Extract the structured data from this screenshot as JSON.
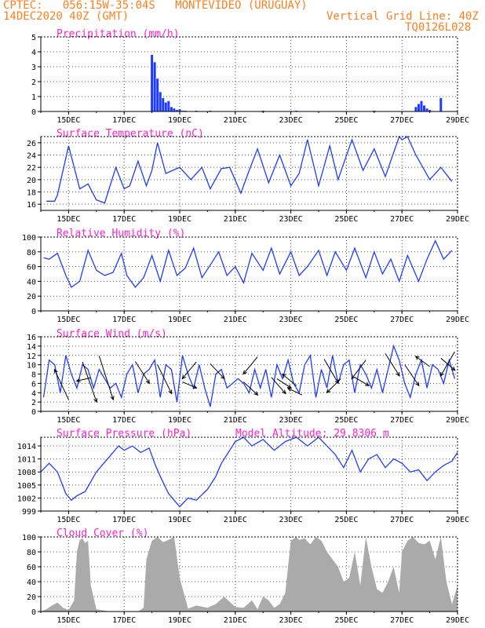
{
  "header": {
    "line1": "CPTEC:   056:15W-35:04S   MONTEVIDEO (URUGUAY)",
    "line2": "14DEC2020 40Z (GMT)",
    "grid_note": "Vertical Grid Line: 40Z",
    "code": "TQ0126L028",
    "altitude_note": "Model Altitude: 29.8306 m"
  },
  "colors": {
    "header": "#ff7f1e",
    "title": "#ff22cc",
    "line": "#1e3cff",
    "bar": "#1e3cff",
    "cloud": "#aaaaaa",
    "arrow": "#000000"
  },
  "x_ticks": [
    "15DEC",
    "17DEC",
    "19DEC",
    "21DEC",
    "23DEC",
    "25DEC",
    "27DEC",
    "29DEC"
  ],
  "chart_data": [
    {
      "type": "bar",
      "title": "Precipitation (mm/h)",
      "ylim": [
        0,
        5
      ],
      "yticks": [
        "0",
        "1",
        "2",
        "3",
        "4",
        "5"
      ],
      "x_units": "days since 14DEC 00Z",
      "x": [
        4.0,
        4.1,
        4.2,
        4.3,
        4.4,
        4.5,
        4.6,
        4.7,
        4.8,
        4.9,
        5.0,
        5.1,
        5.2,
        5.6,
        6.1,
        8.0,
        9.2,
        12.0,
        13.5,
        13.6,
        13.7,
        13.8,
        13.9,
        14.0,
        14.4
      ],
      "values": [
        3.8,
        3.3,
        2.2,
        1.3,
        0.9,
        0.6,
        0.7,
        0.3,
        0.2,
        0.1,
        0.15,
        0.05,
        0.05,
        0.05,
        0.05,
        0.05,
        0.05,
        0.05,
        0.3,
        0.5,
        0.7,
        0.4,
        0.2,
        0.1,
        0.9
      ]
    },
    {
      "type": "line",
      "title": "Surface Temperature (nC)",
      "ylim": [
        15,
        27
      ],
      "yticks": [
        "16",
        "18",
        "20",
        "22",
        "24",
        "26"
      ],
      "x_units": "days since 14DEC 00Z",
      "x": [
        0.2,
        0.5,
        0.6,
        1.0,
        1.4,
        1.7,
        2.0,
        2.3,
        2.7,
        3.0,
        3.2,
        3.5,
        3.8,
        4.0,
        4.2,
        4.5,
        5.0,
        5.4,
        5.8,
        6.1,
        6.5,
        6.8,
        7.2,
        7.5,
        7.8,
        8.2,
        8.6,
        9.0,
        9.3,
        9.6,
        10.0,
        10.4,
        10.7,
        11.2,
        11.6,
        12.0,
        12.4,
        12.9,
        13.0,
        13.2,
        13.5,
        14.0,
        14.4,
        14.8
      ],
      "values": [
        16.5,
        16.5,
        17.5,
        25.5,
        18.5,
        19.3,
        16.7,
        16.2,
        22.0,
        18.5,
        19.0,
        23.0,
        19.0,
        21.5,
        26.0,
        21.0,
        22.0,
        20.0,
        22.0,
        18.5,
        21.8,
        22.0,
        17.8,
        21.5,
        25.0,
        19.5,
        24.0,
        19.0,
        21.0,
        26.5,
        19.0,
        25.5,
        20.0,
        26.5,
        21.5,
        25.0,
        20.5,
        27.0,
        26.5,
        27.0,
        24.0,
        20.0,
        22.0,
        19.7
      ]
    },
    {
      "type": "line",
      "title": "Relative Humidity (%)",
      "ylim": [
        0,
        100
      ],
      "yticks": [
        "0",
        "20",
        "40",
        "60",
        "80",
        "100"
      ],
      "x_units": "days since 14DEC 00Z",
      "x": [
        0.1,
        0.3,
        0.6,
        0.9,
        1.1,
        1.4,
        1.7,
        2.0,
        2.3,
        2.6,
        2.9,
        3.1,
        3.4,
        3.7,
        4.0,
        4.3,
        4.6,
        4.9,
        5.2,
        5.5,
        5.8,
        6.1,
        6.4,
        6.7,
        7.0,
        7.3,
        7.6,
        8.0,
        8.3,
        8.6,
        9.0,
        9.3,
        9.6,
        10.0,
        10.3,
        10.6,
        11.0,
        11.3,
        11.7,
        12.0,
        12.3,
        12.6,
        12.9,
        13.2,
        13.6,
        13.9,
        14.2,
        14.5,
        14.8
      ],
      "values": [
        72,
        70,
        78,
        48,
        32,
        40,
        82,
        55,
        48,
        52,
        78,
        48,
        32,
        45,
        75,
        40,
        82,
        48,
        58,
        85,
        45,
        62,
        80,
        48,
        60,
        38,
        78,
        55,
        85,
        50,
        80,
        48,
        60,
        82,
        48,
        80,
        55,
        85,
        45,
        80,
        50,
        70,
        40,
        75,
        40,
        70,
        95,
        70,
        82
      ]
    },
    {
      "type": "line",
      "title": "Surface Wind (m/s)",
      "ylim": [
        0,
        16
      ],
      "yticks": [
        "0",
        "2",
        "4",
        "6",
        "8",
        "10",
        "12",
        "14",
        "16"
      ],
      "x_units": "days since 14DEC 00Z",
      "x": [
        0.1,
        0.3,
        0.5,
        0.7,
        0.9,
        1.1,
        1.3,
        1.5,
        1.7,
        1.9,
        2.1,
        2.3,
        2.5,
        2.7,
        2.9,
        3.1,
        3.3,
        3.5,
        3.7,
        3.9,
        4.1,
        4.3,
        4.5,
        4.7,
        4.9,
        5.1,
        5.3,
        5.5,
        5.7,
        5.9,
        6.1,
        6.3,
        6.5,
        6.7,
        6.9,
        7.1,
        7.3,
        7.5,
        7.7,
        7.9,
        8.1,
        8.3,
        8.5,
        8.7,
        8.9,
        9.1,
        9.3,
        9.5,
        9.7,
        9.9,
        10.1,
        10.3,
        10.5,
        10.7,
        10.9,
        11.1,
        11.3,
        11.5,
        11.7,
        11.9,
        12.1,
        12.3,
        12.5,
        12.7,
        12.9,
        13.1,
        13.3,
        13.5,
        13.7,
        13.9,
        14.1,
        14.3,
        14.5,
        14.7,
        14.9
      ],
      "values": [
        3,
        11,
        10,
        4,
        12,
        8,
        5,
        10,
        9,
        5,
        9,
        7,
        5,
        6,
        3,
        8,
        10,
        4,
        8,
        9,
        11,
        3,
        10,
        9,
        2,
        12,
        8,
        5,
        10,
        5,
        1,
        8,
        9,
        5,
        6,
        7,
        6,
        4,
        9,
        5,
        9,
        3,
        10,
        7,
        11,
        6,
        4,
        10,
        12,
        3,
        9,
        5,
        12,
        6,
        10,
        11,
        4,
        10,
        8,
        5,
        9,
        4,
        9,
        14,
        11,
        6,
        3,
        8,
        11,
        5,
        10,
        9,
        6,
        11,
        7
      ],
      "arrows": [
        [
          1.0,
          2.5,
          9
        ],
        [
          1.8,
          7.2,
          6.5
        ],
        [
          1.5,
          10.6,
          2
        ],
        [
          2.1,
          11.9,
          2.5
        ],
        [
          3.4,
          10.7,
          6
        ],
        [
          4.2,
          10.0,
          3.8
        ],
        [
          5.1,
          6.3,
          5
        ],
        [
          5.6,
          10.6,
          7
        ],
        [
          6.1,
          10.2,
          7
        ],
        [
          7.3,
          6.3,
          3.5
        ],
        [
          7.8,
          11.7,
          8
        ],
        [
          8.3,
          7.3,
          3.8
        ],
        [
          8.5,
          7.0,
          5
        ],
        [
          9.2,
          5.5,
          8
        ],
        [
          9.4,
          3.5,
          5
        ],
        [
          10.2,
          11.2,
          6
        ],
        [
          10.8,
          7.0,
          4
        ],
        [
          11.3,
          7.3,
          5.5
        ],
        [
          11.7,
          11.0,
          7
        ],
        [
          12.4,
          12.4,
          7.6
        ],
        [
          13.1,
          10.0,
          5.5
        ],
        [
          14.0,
          9.6,
          11.8
        ],
        [
          14.4,
          11.4,
          8.8
        ],
        [
          14.9,
          12.8,
          7.6
        ]
      ]
    },
    {
      "type": "line",
      "title": "Surface Pressure (hPa)",
      "ylim": [
        999,
        1016
      ],
      "yticks": [
        "999",
        "1002",
        "1005",
        "1008",
        "1011",
        "1014"
      ],
      "x_units": "days since 14DEC 00Z",
      "x": [
        0.0,
        0.3,
        0.6,
        0.9,
        1.1,
        1.3,
        1.6,
        2.0,
        2.4,
        2.8,
        3.0,
        3.3,
        3.6,
        3.9,
        4.1,
        4.3,
        4.6,
        5.0,
        5.3,
        5.6,
        6.0,
        6.3,
        6.5,
        6.8,
        7.0,
        7.3,
        7.6,
        8.0,
        8.4,
        8.8,
        9.2,
        9.6,
        10.0,
        10.3,
        10.6,
        10.9,
        11.2,
        11.5,
        11.8,
        12.1,
        12.4,
        12.7,
        13.0,
        13.3,
        13.6,
        13.9,
        14.2,
        14.5,
        14.8,
        15.0
      ],
      "values": [
        1008,
        1010,
        1008,
        1003,
        1001.5,
        1002.5,
        1003.5,
        1008,
        1011,
        1014,
        1013,
        1014,
        1012.5,
        1013.5,
        1010,
        1007,
        1003,
        1000,
        1002,
        1001.5,
        1004,
        1007,
        1010,
        1013,
        1015,
        1016,
        1014,
        1015.5,
        1013,
        1015,
        1016,
        1014,
        1016,
        1014,
        1012,
        1009,
        1013,
        1008,
        1011,
        1012,
        1009,
        1011,
        1010,
        1008,
        1008.5,
        1006,
        1008,
        1009.5,
        1010.5,
        1012.5
      ]
    },
    {
      "type": "area",
      "title": "Cloud Cover (%)",
      "ylim": [
        0,
        100
      ],
      "yticks": [
        "0",
        "20",
        "40",
        "60",
        "80",
        "100"
      ],
      "x_units": "days since 14DEC 00Z",
      "x": [
        0.0,
        0.2,
        0.4,
        0.6,
        0.8,
        1.0,
        1.2,
        1.3,
        1.4,
        1.5,
        1.6,
        1.7,
        1.8,
        2.0,
        2.5,
        3.0,
        3.5,
        3.7,
        3.8,
        4.0,
        4.2,
        4.4,
        4.6,
        4.8,
        5.0,
        5.3,
        5.6,
        6.0,
        6.3,
        6.6,
        7.0,
        7.3,
        7.6,
        7.8,
        8.0,
        8.2,
        8.4,
        8.6,
        8.8,
        9.0,
        9.2,
        9.3,
        9.5,
        9.7,
        9.9,
        10.1,
        10.3,
        10.5,
        10.7,
        10.9,
        11.1,
        11.3,
        11.5,
        11.7,
        11.9,
        12.1,
        12.3,
        12.5,
        12.7,
        12.9,
        13.0,
        13.2,
        13.4,
        13.6,
        13.8,
        14.0,
        14.2,
        14.4,
        14.6,
        14.8,
        15.0
      ],
      "values": [
        0,
        3,
        8,
        12,
        5,
        2,
        15,
        80,
        96,
        98,
        92,
        95,
        35,
        3,
        0,
        0,
        0,
        5,
        70,
        95,
        100,
        93,
        96,
        100,
        45,
        4,
        8,
        5,
        10,
        20,
        6,
        5,
        15,
        3,
        20,
        15,
        5,
        10,
        25,
        95,
        100,
        96,
        98,
        90,
        100,
        95,
        80,
        70,
        60,
        40,
        45,
        80,
        35,
        100,
        60,
        30,
        25,
        40,
        60,
        25,
        80,
        95,
        100,
        92,
        90,
        95,
        70,
        100,
        40,
        10,
        35
      ]
    }
  ]
}
